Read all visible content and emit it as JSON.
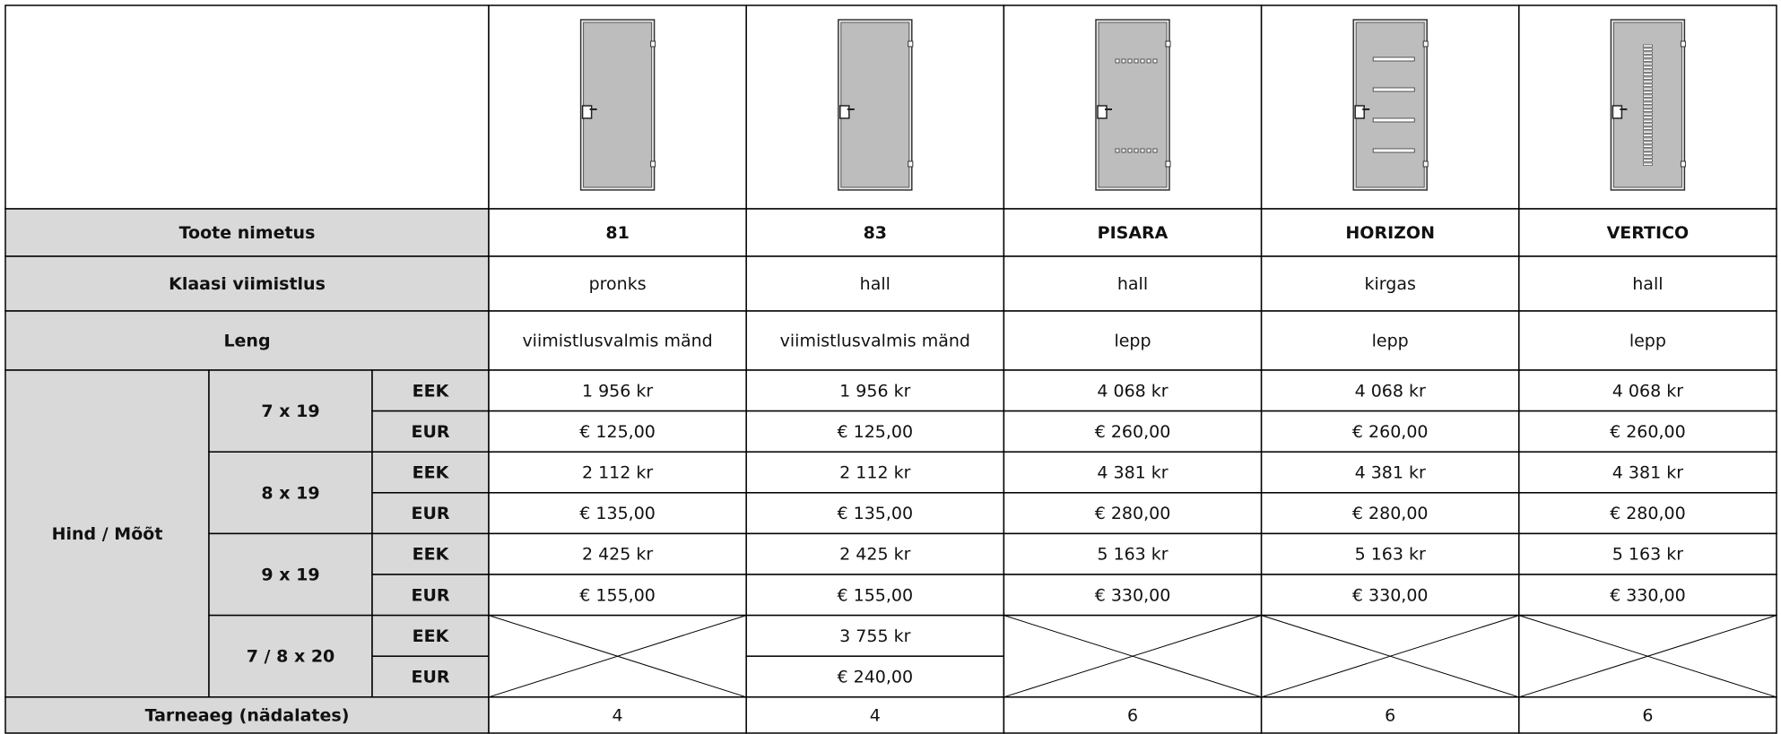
{
  "row_labels": {
    "name": "Toote nimetus",
    "glass": "Klaasi viimistlus",
    "frame": "Leng",
    "price": "Hind / Mõõt",
    "delivery": "Tarneaeg (nädalates)"
  },
  "sizes": [
    {
      "label": "7 x 19",
      "currencies": [
        "EEK",
        "EUR"
      ]
    },
    {
      "label": "8 x 19",
      "currencies": [
        "EEK",
        "EUR"
      ]
    },
    {
      "label": "9 x 19",
      "currencies": [
        "EEK",
        "EUR"
      ]
    },
    {
      "label": "7 / 8 x 20",
      "currencies": [
        "EEK",
        "EUR"
      ]
    }
  ],
  "products": [
    {
      "name": "81",
      "glass": "pronks",
      "frame": "viimistlusvalmis mänd",
      "prices": [
        [
          "1 956 kr",
          "€ 125,00"
        ],
        [
          "2 112 kr",
          "€ 135,00"
        ],
        [
          "2 425 kr",
          "€ 155,00"
        ],
        null
      ],
      "delivery": "4"
    },
    {
      "name": "83",
      "glass": "hall",
      "frame": "viimistlusvalmis mänd",
      "prices": [
        [
          "1 956 kr",
          "€ 125,00"
        ],
        [
          "2 112 kr",
          "€ 135,00"
        ],
        [
          "2 425 kr",
          "€ 155,00"
        ],
        [
          "3 755 kr",
          "€ 240,00"
        ]
      ],
      "delivery": "4"
    },
    {
      "name": "PISARA",
      "glass": "hall",
      "frame": "lepp",
      "prices": [
        [
          "4 068 kr",
          "€ 260,00"
        ],
        [
          "4 381 kr",
          "€ 280,00"
        ],
        [
          "5 163 kr",
          "€ 330,00"
        ],
        null
      ],
      "delivery": "6"
    },
    {
      "name": "HORIZON",
      "glass": "kirgas",
      "frame": "lepp",
      "prices": [
        [
          "4 068 kr",
          "€ 260,00"
        ],
        [
          "4 381 kr",
          "€ 280,00"
        ],
        [
          "5 163 kr",
          "€ 330,00"
        ],
        null
      ],
      "delivery": "6"
    },
    {
      "name": "VERTICO",
      "glass": "hall",
      "frame": "lepp",
      "prices": [
        [
          "4 068 kr",
          "€ 260,00"
        ],
        [
          "4 381 kr",
          "€ 280,00"
        ],
        [
          "5 163 kr",
          "€ 330,00"
        ],
        null
      ],
      "delivery": "6"
    }
  ]
}
